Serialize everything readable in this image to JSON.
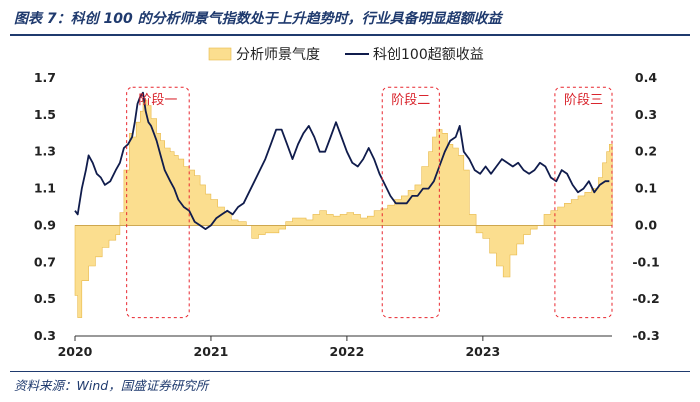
{
  "title": "图表 7：科创 100 的分析师景气指数处于上升趋势时，行业具备明显超额收益",
  "source": "资料来源：Wind，国盛证券研究所",
  "colors": {
    "bar": "#fbde8f",
    "bar_edge": "#e8b94a",
    "line": "#101c4c",
    "stage": "#e8262e",
    "rule": "#1f3a6e"
  },
  "chart_data": {
    "type": "area+line",
    "left_axis": {
      "ylim": [
        0.3,
        1.7
      ],
      "ticks": [
        "0.3",
        "0.5",
        "0.7",
        "0.9",
        "1.1",
        "1.3",
        "1.5",
        "1.7"
      ]
    },
    "right_axis": {
      "ylim": [
        -0.3,
        0.4
      ],
      "ticks": [
        "-0.3",
        "-0.2",
        "-0.1",
        "0.0",
        "0.1",
        "0.2",
        "0.3",
        "0.4"
      ]
    },
    "x_axis": {
      "range": [
        2020.0,
        2023.95
      ],
      "ticks": [
        {
          "v": 2020.0,
          "label": "2020"
        },
        {
          "v": 2021.0,
          "label": "2021"
        },
        {
          "v": 2022.0,
          "label": "2022"
        },
        {
          "v": 2023.0,
          "label": "2023"
        }
      ]
    },
    "legend": [
      "分析师景气度",
      "科创100超额收益"
    ],
    "series": [
      {
        "name": "分析师景气度",
        "axis": "left",
        "style": "step-area",
        "x": [
          2020.0,
          2020.02,
          2020.05,
          2020.1,
          2020.15,
          2020.2,
          2020.25,
          2020.3,
          2020.33,
          2020.36,
          2020.4,
          2020.42,
          2020.45,
          2020.48,
          2020.5,
          2020.53,
          2020.56,
          2020.6,
          2020.63,
          2020.66,
          2020.7,
          2020.73,
          2020.76,
          2020.8,
          2020.84,
          2020.88,
          2020.92,
          2020.96,
          2021.0,
          2021.05,
          2021.1,
          2021.15,
          2021.2,
          2021.26,
          2021.3,
          2021.35,
          2021.4,
          2021.45,
          2021.5,
          2021.55,
          2021.6,
          2021.65,
          2021.7,
          2021.75,
          2021.8,
          2021.85,
          2021.9,
          2021.95,
          2022.0,
          2022.05,
          2022.1,
          2022.15,
          2022.2,
          2022.25,
          2022.3,
          2022.35,
          2022.4,
          2022.45,
          2022.5,
          2022.55,
          2022.6,
          2022.63,
          2022.66,
          2022.7,
          2022.74,
          2022.78,
          2022.82,
          2022.86,
          2022.9,
          2022.95,
          2023.0,
          2023.05,
          2023.1,
          2023.15,
          2023.2,
          2023.25,
          2023.3,
          2023.35,
          2023.4,
          2023.45,
          2023.5,
          2023.55,
          2023.6,
          2023.65,
          2023.7,
          2023.75,
          2023.8,
          2023.85,
          2023.88,
          2023.91,
          2023.93
        ],
        "values": [
          0.52,
          0.4,
          0.6,
          0.68,
          0.73,
          0.78,
          0.82,
          0.85,
          0.97,
          1.2,
          1.4,
          1.38,
          1.46,
          1.52,
          1.58,
          1.55,
          1.48,
          1.4,
          1.36,
          1.32,
          1.3,
          1.28,
          1.26,
          1.22,
          1.2,
          1.17,
          1.12,
          1.07,
          1.04,
          1.0,
          0.97,
          0.93,
          0.92,
          0.9,
          0.83,
          0.85,
          0.86,
          0.86,
          0.88,
          0.92,
          0.94,
          0.94,
          0.93,
          0.96,
          0.98,
          0.96,
          0.95,
          0.96,
          0.97,
          0.96,
          0.94,
          0.95,
          0.98,
          0.99,
          1.01,
          1.04,
          1.06,
          1.09,
          1.12,
          1.22,
          1.3,
          1.38,
          1.42,
          1.4,
          1.34,
          1.32,
          1.28,
          1.2,
          0.96,
          0.86,
          0.83,
          0.75,
          0.68,
          0.62,
          0.74,
          0.8,
          0.85,
          0.88,
          0.9,
          0.96,
          0.98,
          1.0,
          1.02,
          1.04,
          1.06,
          1.08,
          1.1,
          1.16,
          1.24,
          1.3,
          1.34
        ]
      },
      {
        "name": "科创100超额收益",
        "axis": "right",
        "style": "line",
        "x": [
          2020.0,
          2020.02,
          2020.05,
          2020.08,
          2020.1,
          2020.13,
          2020.16,
          2020.19,
          2020.22,
          2020.26,
          2020.3,
          2020.33,
          2020.36,
          2020.39,
          2020.42,
          2020.44,
          2020.46,
          2020.48,
          2020.5,
          2020.52,
          2020.54,
          2020.56,
          2020.58,
          2020.6,
          2020.63,
          2020.66,
          2020.7,
          2020.73,
          2020.76,
          2020.8,
          2020.84,
          2020.88,
          2020.92,
          2020.96,
          2021.0,
          2021.04,
          2021.08,
          2021.12,
          2021.16,
          2021.2,
          2021.24,
          2021.28,
          2021.32,
          2021.36,
          2021.4,
          2021.44,
          2021.48,
          2021.52,
          2021.56,
          2021.6,
          2021.64,
          2021.68,
          2021.72,
          2021.76,
          2021.8,
          2021.84,
          2021.88,
          2021.92,
          2021.96,
          2022.0,
          2022.04,
          2022.08,
          2022.12,
          2022.16,
          2022.2,
          2022.24,
          2022.28,
          2022.32,
          2022.36,
          2022.4,
          2022.44,
          2022.48,
          2022.52,
          2022.56,
          2022.6,
          2022.64,
          2022.68,
          2022.72,
          2022.76,
          2022.8,
          2022.83,
          2022.86,
          2022.9,
          2022.94,
          2022.98,
          2023.02,
          2023.06,
          2023.1,
          2023.14,
          2023.18,
          2023.22,
          2023.26,
          2023.3,
          2023.34,
          2023.38,
          2023.42,
          2023.46,
          2023.5,
          2023.54,
          2023.58,
          2023.62,
          2023.66,
          2023.7,
          2023.74,
          2023.78,
          2023.82,
          2023.86,
          2023.9,
          2023.93
        ],
        "values": [
          0.04,
          0.03,
          0.1,
          0.15,
          0.19,
          0.17,
          0.14,
          0.13,
          0.11,
          0.12,
          0.15,
          0.17,
          0.21,
          0.22,
          0.24,
          0.28,
          0.33,
          0.35,
          0.36,
          0.31,
          0.28,
          0.27,
          0.25,
          0.23,
          0.19,
          0.15,
          0.12,
          0.1,
          0.07,
          0.05,
          0.04,
          0.01,
          0.0,
          -0.01,
          0.0,
          0.02,
          0.03,
          0.04,
          0.03,
          0.05,
          0.06,
          0.09,
          0.12,
          0.15,
          0.18,
          0.22,
          0.26,
          0.26,
          0.22,
          0.18,
          0.22,
          0.25,
          0.27,
          0.24,
          0.2,
          0.2,
          0.24,
          0.28,
          0.24,
          0.2,
          0.17,
          0.16,
          0.18,
          0.21,
          0.18,
          0.14,
          0.11,
          0.08,
          0.06,
          0.06,
          0.06,
          0.08,
          0.08,
          0.1,
          0.1,
          0.12,
          0.16,
          0.2,
          0.23,
          0.24,
          0.27,
          0.2,
          0.18,
          0.15,
          0.14,
          0.16,
          0.14,
          0.16,
          0.18,
          0.17,
          0.16,
          0.17,
          0.15,
          0.14,
          0.15,
          0.17,
          0.16,
          0.13,
          0.12,
          0.15,
          0.14,
          0.11,
          0.09,
          0.1,
          0.12,
          0.09,
          0.11,
          0.12,
          0.12
        ]
      }
    ],
    "stages": [
      {
        "label": "阶段一",
        "x_range": [
          2020.38,
          2020.84
        ],
        "y_range_left": [
          0.4,
          1.65
        ]
      },
      {
        "label": "阶段二",
        "x_range": [
          2022.26,
          2022.68
        ],
        "y_range_left": [
          0.4,
          1.65
        ]
      },
      {
        "label": "阶段三",
        "x_range": [
          2023.53,
          2023.95
        ],
        "y_range_left": [
          0.4,
          1.65
        ]
      }
    ]
  }
}
